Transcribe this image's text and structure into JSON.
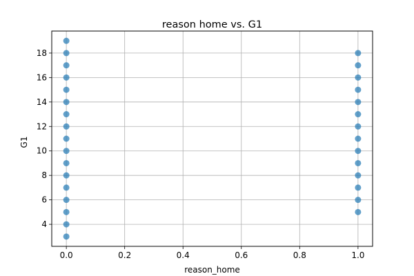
{
  "chart_data": {
    "type": "scatter",
    "title": "reason home vs. G1",
    "xlabel": "reason_home",
    "ylabel": "G1",
    "xlim": [
      -0.05,
      1.05
    ],
    "ylim": [
      2.2,
      19.8
    ],
    "xticks": [
      0.0,
      0.2,
      0.4,
      0.6,
      0.8,
      1.0
    ],
    "xtick_labels": [
      "0.0",
      "0.2",
      "0.4",
      "0.6",
      "0.8",
      "1.0"
    ],
    "yticks": [
      4,
      6,
      8,
      10,
      12,
      14,
      16,
      18
    ],
    "ytick_labels": [
      "4",
      "6",
      "8",
      "10",
      "12",
      "14",
      "16",
      "18"
    ],
    "grid": true,
    "point_color": "#1f77b4",
    "series": [
      {
        "x": [
          0,
          0,
          0,
          0,
          0,
          0,
          0,
          0,
          0,
          0,
          0,
          0,
          0,
          0,
          0,
          0,
          0,
          1,
          1,
          1,
          1,
          1,
          1,
          1,
          1,
          1,
          1,
          1,
          1,
          1,
          1
        ],
        "y": [
          3,
          4,
          5,
          6,
          7,
          8,
          9,
          10,
          11,
          12,
          13,
          14,
          15,
          16,
          17,
          18,
          19,
          5,
          6,
          7,
          8,
          9,
          10,
          11,
          12,
          13,
          14,
          15,
          16,
          17,
          18
        ]
      }
    ]
  }
}
